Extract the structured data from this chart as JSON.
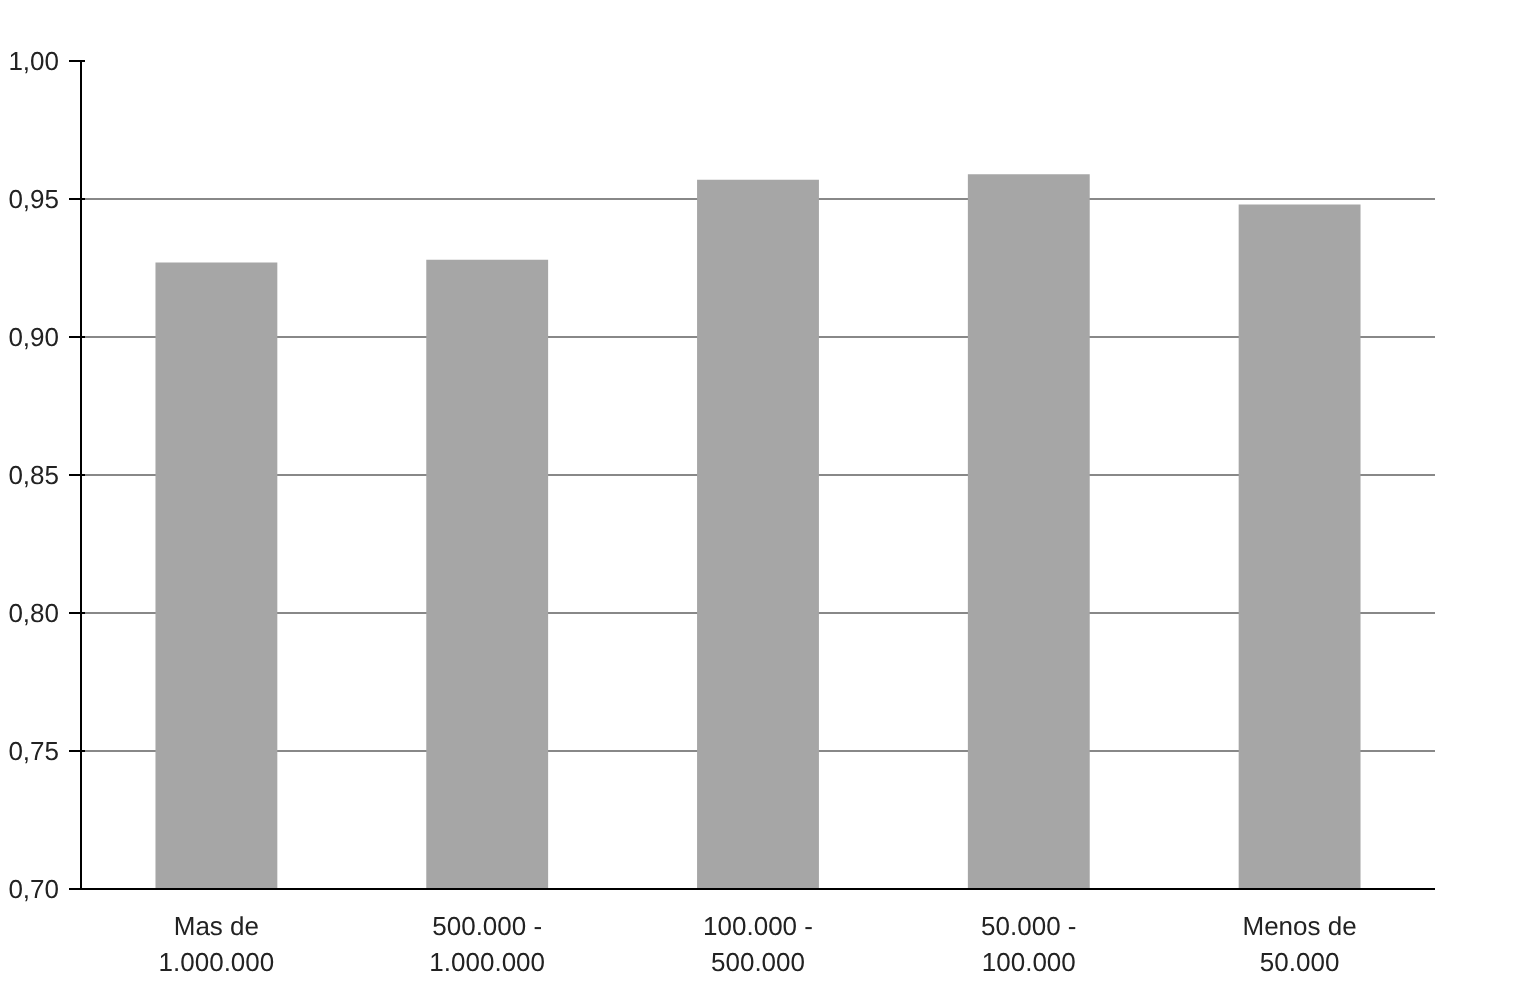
{
  "chart_data": {
    "type": "bar",
    "categories": [
      "Mas de\n1.000.000",
      "500.000 -\n1.000.000",
      "100.000 -\n500.000",
      "50.000 -\n100.000",
      "Menos de\n50.000"
    ],
    "values": [
      0.927,
      0.928,
      0.957,
      0.959,
      0.948
    ],
    "color": "#a6a6a6",
    "ylim": [
      0.7,
      1.0
    ],
    "yticks": [
      {
        "value": 0.7,
        "label": "0,70"
      },
      {
        "value": 0.75,
        "label": "0,75"
      },
      {
        "value": 0.8,
        "label": "0,80"
      },
      {
        "value": 0.85,
        "label": "0,85"
      },
      {
        "value": 0.9,
        "label": "0,90"
      },
      {
        "value": 0.95,
        "label": "0,95"
      },
      {
        "value": 1.0,
        "label": "1,00"
      }
    ],
    "grid": "y"
  }
}
